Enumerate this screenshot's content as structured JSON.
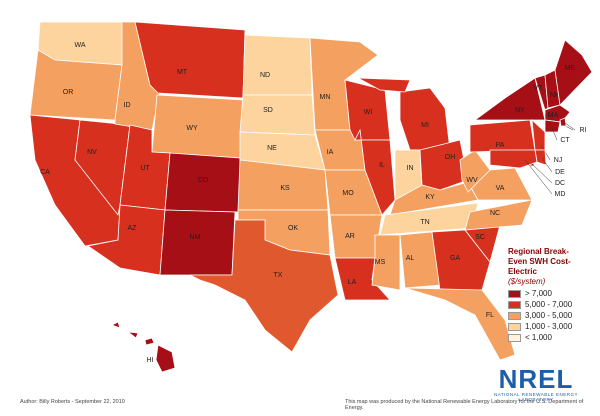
{
  "map": {
    "states": [
      {
        "label": "WA",
        "color": "#fdd49e"
      },
      {
        "label": "OR",
        "color": "#f4a060"
      },
      {
        "label": "CA",
        "color": "#d7301f"
      },
      {
        "label": "NV",
        "color": "#d7301f"
      },
      {
        "label": "ID",
        "color": "#f4a060"
      },
      {
        "label": "MT",
        "color": "#d7301f"
      },
      {
        "label": "WY",
        "color": "#f4a060"
      },
      {
        "label": "UT",
        "color": "#d7301f"
      },
      {
        "label": "CO",
        "color": "#a50f15"
      },
      {
        "label": "AZ",
        "color": "#d7301f"
      },
      {
        "label": "NM",
        "color": "#a50f15"
      },
      {
        "label": "ND",
        "color": "#fdd49e"
      },
      {
        "label": "SD",
        "color": "#fdd49e"
      },
      {
        "label": "NE",
        "color": "#fdd49e"
      },
      {
        "label": "KS",
        "color": "#f4a060"
      },
      {
        "label": "OK",
        "color": "#f4a060"
      },
      {
        "label": "TX",
        "color": "#e0582e"
      },
      {
        "label": "MN",
        "color": "#f4a060"
      },
      {
        "label": "IA",
        "color": "#f4a060"
      },
      {
        "label": "MO",
        "color": "#f4a060"
      },
      {
        "label": "AR",
        "color": "#f4a060"
      },
      {
        "label": "LA",
        "color": "#d7301f"
      },
      {
        "label": "WI",
        "color": "#d7301f"
      },
      {
        "label": "IL",
        "color": "#d7301f"
      },
      {
        "label": "MI",
        "color": "#d7301f"
      },
      {
        "label": "IN",
        "color": "#fdd49e"
      },
      {
        "label": "OH",
        "color": "#d7301f"
      },
      {
        "label": "KY",
        "color": "#f4a060"
      },
      {
        "label": "TN",
        "color": "#fdd49e"
      },
      {
        "label": "MS",
        "color": "#f4a060"
      },
      {
        "label": "AL",
        "color": "#f4a060"
      },
      {
        "label": "GA",
        "color": "#d7301f"
      },
      {
        "label": "FL",
        "color": "#f4a060"
      },
      {
        "label": "SC",
        "color": "#d7301f"
      },
      {
        "label": "NC",
        "color": "#f4a060"
      },
      {
        "label": "VA",
        "color": "#f4a060"
      },
      {
        "label": "WV",
        "color": "#f4a060"
      },
      {
        "label": "PA",
        "color": "#d7301f"
      },
      {
        "label": "NY",
        "color": "#a50f15"
      },
      {
        "label": "VT",
        "color": "#a50f15"
      },
      {
        "label": "NH",
        "color": "#a50f15"
      },
      {
        "label": "ME",
        "color": "#a50f15"
      },
      {
        "label": "MA",
        "color": "#a50f15"
      },
      {
        "label": "RI",
        "color": "#a50f15"
      },
      {
        "label": "CT",
        "color": "#a50f15"
      },
      {
        "label": "NJ",
        "color": "#d7301f"
      },
      {
        "label": "DE",
        "color": "#d7301f"
      },
      {
        "label": "DC",
        "color": "#d7301f"
      },
      {
        "label": "MD",
        "color": "#d7301f"
      },
      {
        "label": "HI",
        "color": "#a50f15"
      }
    ],
    "legend": {
      "title": "Regional Break-Even SWH Cost-Electric",
      "unit": "($/system)",
      "items": [
        {
          "label": "> 7,000",
          "color": "#a50f15"
        },
        {
          "label": "5,000 - 7,000",
          "color": "#d7301f"
        },
        {
          "label": "3,000 - 5,000",
          "color": "#f4a060"
        },
        {
          "label": "1,000 - 3,000",
          "color": "#fdd49e"
        },
        {
          "label": "< 1,000",
          "color": "#fff3e0"
        }
      ]
    },
    "author": "Author: Billy Roberts - September 22, 2010",
    "credit": "This map was produced by the National Renewable Energy Laboratory for the U.S. Department of Energy.",
    "logo": {
      "name": "NREL",
      "tagline": "NATIONAL RENEWABLE ENERGY LABORATORY"
    }
  }
}
